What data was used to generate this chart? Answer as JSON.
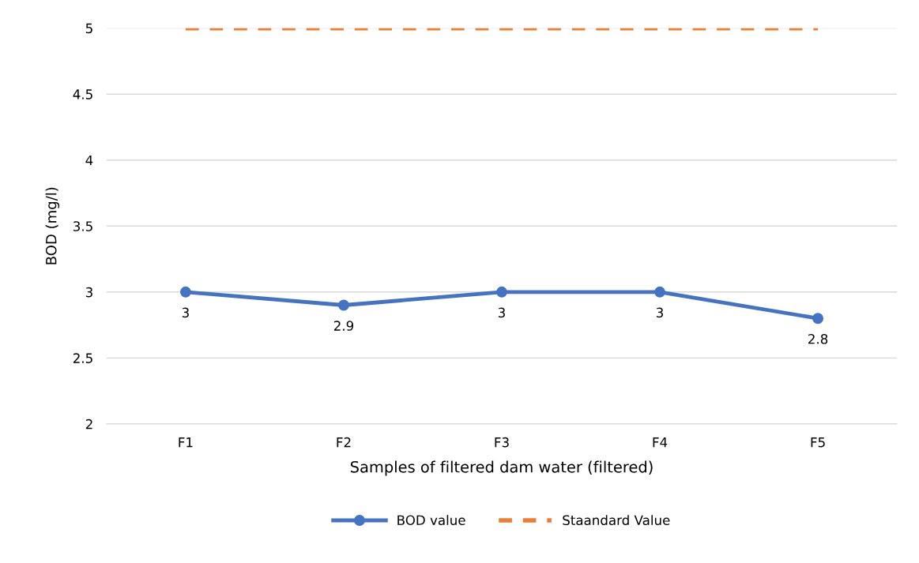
{
  "chart_data": {
    "type": "line",
    "xlabel": "Samples of filtered dam water (filtered)",
    "ylabel": "BOD (mg/l)",
    "categories": [
      "F1",
      "F2",
      "F3",
      "F4",
      "F5"
    ],
    "series": [
      {
        "name": "BOD value",
        "color": "#4472c4",
        "values": [
          3,
          2.9,
          3,
          3,
          2.8
        ],
        "value_labels": [
          "3",
          "2.9",
          "3",
          "3",
          "2.8"
        ],
        "marker": "circle",
        "line_style": "solid"
      },
      {
        "name": "Staandard Value",
        "color": "#ed7d31",
        "values": [
          5,
          5,
          5,
          5,
          5
        ],
        "marker": "none",
        "line_style": "dashed"
      }
    ],
    "ylim": [
      2,
      5
    ],
    "yticks": [
      2,
      2.5,
      3,
      3.5,
      4,
      4.5,
      5
    ],
    "grid": "y",
    "legend": "bottom"
  }
}
